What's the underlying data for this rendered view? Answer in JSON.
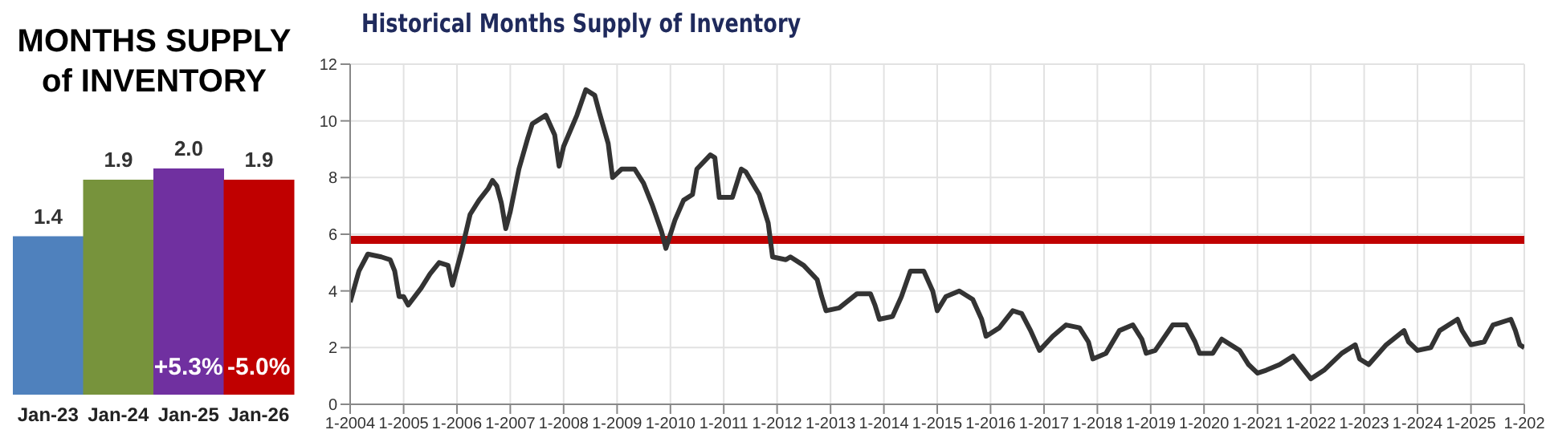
{
  "chart_data": [
    {
      "type": "bar",
      "title": "MONTHS SUPPLY of INVENTORY",
      "categories": [
        "Jan-23",
        "Jan-24",
        "Jan-25",
        "Jan-26"
      ],
      "values": [
        1.4,
        1.9,
        2.0,
        1.9
      ],
      "colors": [
        "#4f81bd",
        "#77933c",
        "#7030a0",
        "#c00000"
      ],
      "value_labels": [
        "1.4",
        "1.9",
        "2.0",
        "1.9"
      ],
      "annotations": [
        "+5.3%",
        "-5.0%"
      ]
    },
    {
      "type": "line",
      "title": "Historical Months Supply of Inventory",
      "xlim": [
        "2004-01",
        "2026-01"
      ],
      "ylim": [
        0,
        12
      ],
      "yticks": [
        0,
        2,
        4,
        6,
        8,
        10,
        12
      ],
      "grid": true,
      "xticks": [
        {
          "value": "2004-01",
          "label": "1-2004"
        },
        {
          "value": "2005-01",
          "label": "1-2005"
        },
        {
          "value": "2006-01",
          "label": "1-2006"
        },
        {
          "value": "2007-01",
          "label": "1-2007"
        },
        {
          "value": "2008-01",
          "label": "1-2008"
        },
        {
          "value": "2009-01",
          "label": "1-2009"
        },
        {
          "value": "2010-01",
          "label": "1-2010"
        },
        {
          "value": "2011-01",
          "label": "1-2011"
        },
        {
          "value": "2012-01",
          "label": "1-2012"
        },
        {
          "value": "2013-01",
          "label": "1-2013"
        },
        {
          "value": "2014-01",
          "label": "1-2014"
        },
        {
          "value": "2015-01",
          "label": "1-2015"
        },
        {
          "value": "2016-01",
          "label": "1-2016"
        },
        {
          "value": "2017-01",
          "label": "1-2017"
        },
        {
          "value": "2018-01",
          "label": "1-2018"
        },
        {
          "value": "2019-01",
          "label": "1-2019"
        },
        {
          "value": "2020-01",
          "label": "1-2020"
        },
        {
          "value": "2021-01",
          "label": "1-2021"
        },
        {
          "value": "2022-01",
          "label": "1-2022"
        },
        {
          "value": "2023-01",
          "label": "1-2023"
        },
        {
          "value": "2024-01",
          "label": "1-2024"
        },
        {
          "value": "2025-01",
          "label": "1-2025"
        },
        {
          "value": "2026-01",
          "label": "1-202"
        }
      ],
      "ref_lines": [
        {
          "axis": "y",
          "value": 5.8,
          "color": "#c00000"
        }
      ],
      "series": [
        {
          "color": "#333333",
          "x": [
            "2004-01",
            "2004-03",
            "2004-05",
            "2004-08",
            "2004-10",
            "2004-11",
            "2004-12",
            "2005-01",
            "2005-02",
            "2005-05",
            "2005-07",
            "2005-09",
            "2005-11",
            "2005-12",
            "2006-02",
            "2006-04",
            "2006-06",
            "2006-08",
            "2006-09",
            "2006-10",
            "2006-11",
            "2006-12",
            "2007-01",
            "2007-03",
            "2007-05",
            "2007-06",
            "2007-09",
            "2007-11",
            "2007-12",
            "2008-01",
            "2008-04",
            "2008-06",
            "2008-08",
            "2008-09",
            "2008-11",
            "2008-12",
            "2009-02",
            "2009-05",
            "2009-07",
            "2009-09",
            "2009-11",
            "2009-12",
            "2010-02",
            "2010-04",
            "2010-06",
            "2010-07",
            "2010-10",
            "2010-11",
            "2010-12",
            "2011-03",
            "2011-05",
            "2011-06",
            "2011-09",
            "2011-11",
            "2011-12",
            "2012-03",
            "2012-04",
            "2012-07",
            "2012-10",
            "2012-11",
            "2012-12",
            "2013-03",
            "2013-07",
            "2013-10",
            "2013-11",
            "2013-12",
            "2014-03",
            "2014-05",
            "2014-07",
            "2014-10",
            "2014-12",
            "2015-01",
            "2015-03",
            "2015-06",
            "2015-09",
            "2015-11",
            "2015-12",
            "2016-03",
            "2016-06",
            "2016-08",
            "2016-10",
            "2016-12",
            "2017-03",
            "2017-06",
            "2017-09",
            "2017-11",
            "2017-12",
            "2018-03",
            "2018-06",
            "2018-09",
            "2018-11",
            "2018-12",
            "2019-02",
            "2019-06",
            "2019-09",
            "2019-11",
            "2019-12",
            "2020-03",
            "2020-05",
            "2020-09",
            "2020-11",
            "2021-01",
            "2021-03",
            "2021-06",
            "2021-09",
            "2021-11",
            "2022-01",
            "2022-04",
            "2022-08",
            "2022-11",
            "2022-12",
            "2023-02",
            "2023-06",
            "2023-10",
            "2023-11",
            "2024-01",
            "2024-04",
            "2024-06",
            "2024-10",
            "2024-11",
            "2025-01",
            "2025-04",
            "2025-06",
            "2025-10",
            "2025-11",
            "2025-12",
            "2026-01"
          ],
          "values": [
            3.6,
            4.7,
            5.3,
            5.2,
            5.1,
            4.7,
            3.8,
            3.8,
            3.5,
            4.1,
            4.6,
            5.0,
            4.9,
            4.2,
            5.4,
            6.7,
            7.2,
            7.6,
            7.9,
            7.7,
            7.1,
            6.2,
            6.8,
            8.3,
            9.4,
            9.9,
            10.2,
            9.5,
            8.4,
            9.1,
            10.2,
            11.1,
            10.9,
            10.3,
            9.2,
            8.0,
            8.3,
            8.3,
            7.8,
            7.0,
            6.1,
            5.5,
            6.5,
            7.2,
            7.4,
            8.3,
            8.8,
            8.7,
            7.3,
            7.3,
            8.3,
            8.2,
            7.4,
            6.4,
            5.2,
            5.1,
            5.2,
            4.9,
            4.4,
            3.8,
            3.3,
            3.4,
            3.9,
            3.9,
            3.5,
            3.0,
            3.1,
            3.8,
            4.7,
            4.7,
            4.0,
            3.3,
            3.8,
            4.0,
            3.7,
            3.0,
            2.4,
            2.7,
            3.3,
            3.2,
            2.6,
            1.9,
            2.4,
            2.8,
            2.7,
            2.2,
            1.6,
            1.8,
            2.6,
            2.8,
            2.3,
            1.8,
            1.9,
            2.8,
            2.8,
            2.2,
            1.8,
            1.8,
            2.3,
            1.9,
            1.4,
            1.1,
            1.2,
            1.4,
            1.7,
            1.3,
            0.9,
            1.2,
            1.8,
            2.1,
            1.6,
            1.4,
            2.1,
            2.6,
            2.2,
            1.9,
            2.0,
            2.6,
            3.0,
            2.6,
            2.1,
            2.2,
            2.8,
            3.0,
            2.6,
            2.1,
            2.0
          ]
        }
      ]
    }
  ]
}
